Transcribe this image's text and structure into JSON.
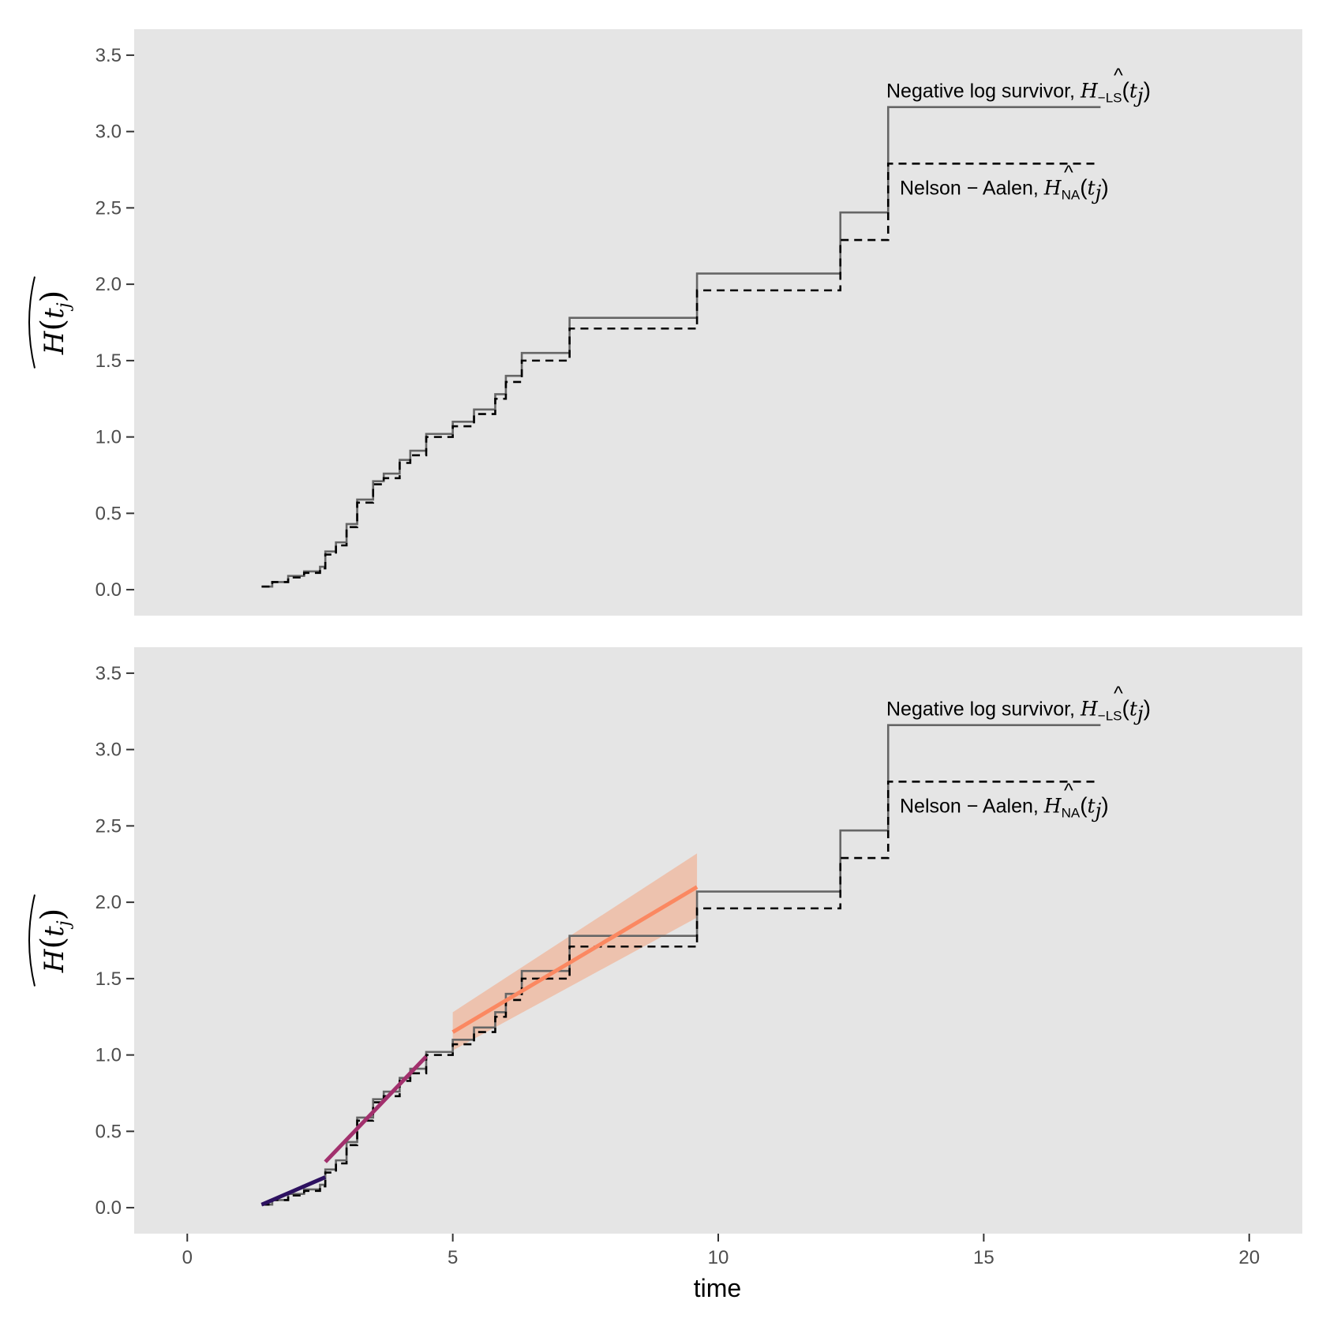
{
  "chart_data": {
    "type": "line",
    "xlabel": "time",
    "ylabel": "H(t_j)",
    "ylabel_display": {
      "main": "H",
      "open": "(",
      "t": "t",
      "sub": "j",
      "close": ")"
    },
    "xlim": [
      -1,
      21
    ],
    "ylim": [
      -0.17,
      3.67
    ],
    "x_ticks": [
      0,
      5,
      10,
      15,
      20
    ],
    "x_tick_labels": [
      "0",
      "5",
      "10",
      "15",
      "20"
    ],
    "y_ticks": [
      0,
      0.5,
      1,
      1.5,
      2,
      2.5,
      3,
      3.5
    ],
    "y_tick_labels": [
      "0.0",
      "0.5",
      "1.0",
      "1.5",
      "2.0",
      "2.5",
      "3.0",
      "3.5"
    ],
    "annotations": {
      "nls_text": "Negative log survivor,",
      "nls_symbol": "H",
      "nls_sub": "−LS",
      "na_text": "Nelson − Aalen,",
      "na_symbol": "H",
      "na_sub": "NA",
      "paren_open": "(",
      "paren_close": ")",
      "t": "t",
      "j": "j",
      "hat": "^"
    },
    "series": [
      {
        "name": "Negative log survivor",
        "style": "solid",
        "color": "#666666",
        "step_x": [
          1.4,
          1.6,
          1.9,
          2.2,
          2.5,
          2.6,
          2.8,
          3.0,
          3.2,
          3.5,
          3.7,
          4.0,
          4.2,
          4.5,
          5.0,
          5.4,
          5.8,
          6.0,
          6.3,
          7.2,
          9.6,
          12.3,
          13.2,
          17.2
        ],
        "step_y": [
          0.02,
          0.05,
          0.09,
          0.12,
          0.15,
          0.25,
          0.31,
          0.43,
          0.59,
          0.71,
          0.76,
          0.85,
          0.91,
          1.02,
          1.1,
          1.18,
          1.28,
          1.4,
          1.55,
          1.78,
          2.07,
          2.47,
          3.16,
          3.16
        ]
      },
      {
        "name": "Nelson − Aalen",
        "style": "dashed",
        "color": "#000000",
        "step_x": [
          1.4,
          1.6,
          1.9,
          2.2,
          2.5,
          2.6,
          2.8,
          3.0,
          3.2,
          3.5,
          3.7,
          4.0,
          4.2,
          4.5,
          5.0,
          5.4,
          5.8,
          6.0,
          6.3,
          7.2,
          9.6,
          12.3,
          13.2,
          17.1
        ],
        "step_y": [
          0.02,
          0.05,
          0.08,
          0.11,
          0.14,
          0.23,
          0.29,
          0.41,
          0.57,
          0.69,
          0.73,
          0.83,
          0.88,
          1.0,
          1.07,
          1.15,
          1.25,
          1.36,
          1.5,
          1.71,
          1.96,
          2.29,
          2.79,
          2.79
        ]
      }
    ],
    "fits": [
      {
        "name": "segment 1",
        "color": "#2d1160",
        "x": [
          1.4,
          2.6
        ],
        "y": [
          0.02,
          0.2
        ]
      },
      {
        "name": "segment 2",
        "color": "#a2306d",
        "x": [
          2.6,
          4.5
        ],
        "y": [
          0.3,
          0.99
        ]
      },
      {
        "name": "segment 3",
        "color": "#fb8861",
        "band_color": "#f4a582",
        "x": [
          5.0,
          9.6
        ],
        "y": [
          1.15,
          2.1
        ],
        "band_lower": [
          1.03,
          1.9
        ],
        "band_upper": [
          1.28,
          2.32
        ]
      }
    ],
    "panels": [
      {
        "name": "top",
        "show_fits": false
      },
      {
        "name": "bottom",
        "show_fits": true
      }
    ]
  }
}
